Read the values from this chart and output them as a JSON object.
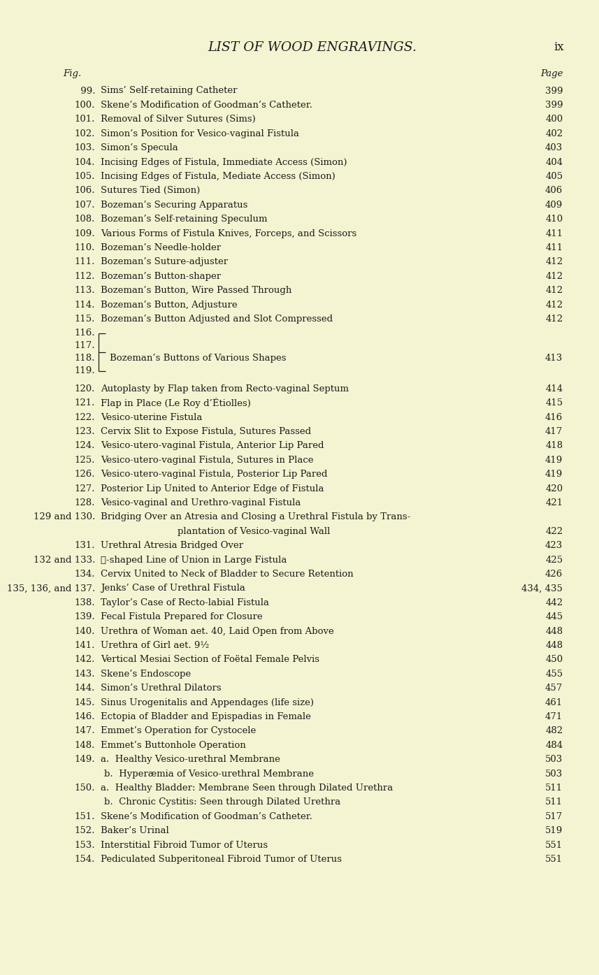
{
  "bg_color": "#f5f4d2",
  "title": "LIST OF WOOD ENGRAVINGS.",
  "page_num": "ix",
  "col_fig": "Fig.",
  "col_page": "Page",
  "entries": [
    {
      "num": " 99.",
      "text": "Sims’ Self-retaining Catheter",
      "page": "399",
      "style": "normal"
    },
    {
      "num": "100.",
      "text": "Skene’s Modification of Goodman’s Catheter.",
      "page": "399",
      "style": "normal"
    },
    {
      "num": "101.",
      "text": "Removal of Silver Sutures (Sims)",
      "page": "400",
      "style": "normal"
    },
    {
      "num": "102.",
      "text": "Simon’s Position for Vesico-vaginal Fistula",
      "page": "402",
      "style": "normal"
    },
    {
      "num": "103.",
      "text": "Simon’s Specula",
      "page": "403",
      "style": "normal"
    },
    {
      "num": "104.",
      "text": "Incising Edges of Fistula, Immediate Access (Simon)",
      "page": "404",
      "style": "normal"
    },
    {
      "num": "105.",
      "text": "Incising Edges of Fistula, Mediate Access (Simon)",
      "page": "405",
      "style": "normal"
    },
    {
      "num": "106.",
      "text": "Sutures Tied (Simon)",
      "page": "406",
      "style": "normal"
    },
    {
      "num": "107.",
      "text": "Bozeman’s Securing Apparatus",
      "page": "409",
      "style": "normal"
    },
    {
      "num": "108.",
      "text": "Bozeman’s Self-retaining Speculum",
      "page": "410",
      "style": "normal"
    },
    {
      "num": "109.",
      "text": "Various Forms of Fistula Knives, Forceps, and Scissors",
      "page": "411",
      "style": "normal"
    },
    {
      "num": "110.",
      "text": "Bozeman’s Needle-holder",
      "page": "411",
      "style": "normal"
    },
    {
      "num": "111.",
      "text": "Bozeman’s Suture-adjuster",
      "page": "412",
      "style": "normal"
    },
    {
      "num": "112.",
      "text": "Bozeman’s Button-shaper",
      "page": "412",
      "style": "normal"
    },
    {
      "num": "113.",
      "text": "Bozeman’s Button, Wire Passed Through",
      "page": "412",
      "style": "normal"
    },
    {
      "num": "114.",
      "text": "Bozeman’s Button, Adjusture",
      "page": "412",
      "style": "normal"
    },
    {
      "num": "115.",
      "text": "Bozeman’s Button Adjusted and Slot Compressed",
      "page": "412",
      "style": "normal"
    },
    {
      "num": "116.",
      "text": "",
      "page": "",
      "style": "bracket"
    },
    {
      "num": "117.",
      "text": "",
      "page": "",
      "style": "bracket"
    },
    {
      "num": "118.",
      "text": "Bozeman’s Buttons of Various Shapes",
      "page": "413",
      "style": "bracket_main"
    },
    {
      "num": "119.",
      "text": "",
      "page": "",
      "style": "bracket"
    },
    {
      "num": "",
      "text": "",
      "page": "",
      "style": "spacer"
    },
    {
      "num": "120.",
      "text": "Autoplasty by Flap taken from Recto-vaginal Septum",
      "page": "414",
      "style": "normal"
    },
    {
      "num": "121.",
      "text": "Flap in Place (Le Roy d’Étiolles)",
      "page": "415",
      "style": "normal"
    },
    {
      "num": "122.",
      "text": "Vesico-uterine Fistula",
      "page": "416",
      "style": "normal"
    },
    {
      "num": "123.",
      "text": "Cervix Slit to Expose Fistula, Sutures Passed",
      "page": "417",
      "style": "normal"
    },
    {
      "num": "124.",
      "text": "Vesico-utero-vaginal Fistula, Anterior Lip Pared",
      "page": "418",
      "style": "normal"
    },
    {
      "num": "125.",
      "text": "Vesico-utero-vaginal Fistula, Sutures in Place",
      "page": "419",
      "style": "normal"
    },
    {
      "num": "126.",
      "text": "Vesico-utero-vaginal Fistula, Posterior Lip Pared",
      "page": "419",
      "style": "normal"
    },
    {
      "num": "127.",
      "text": "Posterior Lip United to Anterior Edge of Fistula",
      "page": "420",
      "style": "normal"
    },
    {
      "num": "128.",
      "text": "Vesico-vaginal and Urethro-vaginal Fistula",
      "page": "421",
      "style": "normal"
    },
    {
      "num": "129 and 130.",
      "text": "Bridging Over an Atresia and Closing a Urethral Fistula by Trans-",
      "page": "",
      "style": "wrap1"
    },
    {
      "num": "",
      "text": "plantation of Vesico-vaginal Wall",
      "page": "422",
      "style": "wrap2"
    },
    {
      "num": "131.",
      "text": "Urethral Atresia Bridged Over",
      "page": "423",
      "style": "normal"
    },
    {
      "num": "132 and 133.",
      "text": "籼-shaped Line of Union in Large Fistula",
      "page": "425",
      "style": "normal"
    },
    {
      "num": "134.",
      "text": "Cervix United to Neck of Bladder to Secure Retention",
      "page": "426",
      "style": "normal"
    },
    {
      "num": "135, 136, and 137.",
      "text": "Jenks’ Case of Urethral Fistula",
      "page": "434, 435",
      "style": "normal"
    },
    {
      "num": "138.",
      "text": "Taylor’s Case of Recto-labial Fistula",
      "page": "442",
      "style": "normal"
    },
    {
      "num": "139.",
      "text": "Fecal Fistula Prepared for Closure",
      "page": "445",
      "style": "normal"
    },
    {
      "num": "140.",
      "text": "Urethra of Woman aet. 40, Laid Open from Above",
      "page": "448",
      "style": "normal"
    },
    {
      "num": "141.",
      "text": "Urethra of Girl aet. 9½",
      "page": "448",
      "style": "normal"
    },
    {
      "num": "142.",
      "text": "Vertical Mesiai Section of Foëtal Female Pelvis",
      "page": "450",
      "style": "normal"
    },
    {
      "num": "143.",
      "text": "Skene’s Endoscope",
      "page": "455",
      "style": "normal"
    },
    {
      "num": "144.",
      "text": "Simon’s Urethral Dilators",
      "page": "457",
      "style": "normal"
    },
    {
      "num": "145.",
      "text": "Sinus Urogenitalis and Appendages (life size)",
      "page": "461",
      "style": "normal"
    },
    {
      "num": "146.",
      "text": "Ectopia of Bladder and Epispadias in Female",
      "page": "471",
      "style": "normal"
    },
    {
      "num": "147.",
      "text": "Emmet’s Operation for Cystocele",
      "page": "482",
      "style": "normal"
    },
    {
      "num": "148.",
      "text": "Emmet’s Buttonhole Operation",
      "page": "484",
      "style": "normal"
    },
    {
      "num": "149.",
      "text": "a.  Healthy Vesico-urethral Membrane",
      "page": "503",
      "style": "normal"
    },
    {
      "num": "",
      "text": "b.  Hyperæmia of Vesico-urethral Membrane",
      "page": "503",
      "style": "sub"
    },
    {
      "num": "150.",
      "text": "a.  Healthy Bladder: Membrane Seen through Dilated Urethra",
      "page": "511",
      "style": "normal"
    },
    {
      "num": "",
      "text": "b.  Chronic Cystitis: Seen through Dilated Urethra",
      "page": "511",
      "style": "sub"
    },
    {
      "num": "151.",
      "text": "Skene’s Modification of Goodman’s Catheter.",
      "page": "517",
      "style": "normal"
    },
    {
      "num": "152.",
      "text": "Baker’s Urinal",
      "page": "519",
      "style": "normal"
    },
    {
      "num": "153.",
      "text": "Interstitial Fibroid Tumor of Uterus",
      "page": "551",
      "style": "normal"
    },
    {
      "num": "154.",
      "text": "Pediculated Subperitoneal Fibroid Tumor of Uterus",
      "page": "551",
      "style": "normal"
    }
  ]
}
